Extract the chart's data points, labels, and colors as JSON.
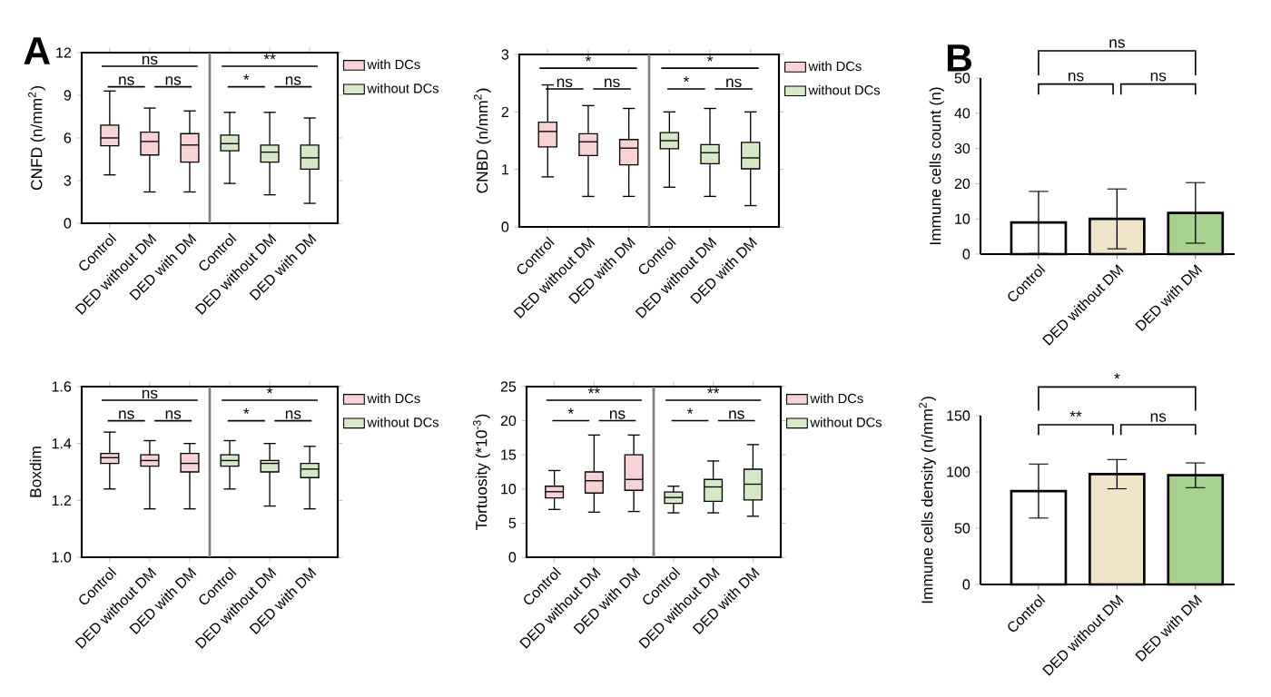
{
  "chart_data": [
    {
      "type": "box",
      "title": "A",
      "ylabel": "CNFD (n/mm$^{2}$)",
      "categories": [
        "Control",
        "DED without DM",
        "DED with DM",
        "Control",
        "DED without DM",
        "DED with DM"
      ],
      "ylim": [
        0,
        12
      ],
      "yticks": [
        0,
        3,
        6,
        9,
        12
      ],
      "legend": "right",
      "annotations": [
        "ns",
        "ns",
        "ns",
        "**",
        "*",
        "ns"
      ],
      "series": [
        {
          "name": "with DCs",
          "color": "#f8d3d6",
          "boxes": [
            {
              "low": 3.4,
              "q1": 5.45,
              "median": 6.0,
              "q3": 6.9,
              "high": 9.3
            },
            {
              "low": 2.2,
              "q1": 4.8,
              "median": 5.75,
              "q3": 6.4,
              "high": 8.1
            },
            {
              "low": 2.2,
              "q1": 4.3,
              "median": 5.5,
              "q3": 6.3,
              "high": 7.9
            },
            null,
            null,
            null
          ]
        },
        {
          "name": "without DCs",
          "color": "#d6e9c6",
          "boxes": [
            null,
            null,
            null,
            {
              "low": 2.8,
              "q1": 5.1,
              "median": 5.6,
              "q3": 6.2,
              "high": 7.8
            },
            {
              "low": 2.0,
              "q1": 4.3,
              "median": 5.0,
              "q3": 5.5,
              "high": 7.8
            },
            {
              "low": 1.4,
              "q1": 3.8,
              "median": 4.6,
              "q3": 5.5,
              "high": 7.4
            }
          ]
        }
      ]
    },
    {
      "type": "box",
      "ylabel": "CNBD (n/mm$^{2}$)",
      "categories": [
        "Control",
        "DED without DM",
        "DED with DM",
        "Control",
        "DED without DM",
        "DED with DM"
      ],
      "ylim": [
        0,
        3
      ],
      "yticks": [
        0,
        1,
        2,
        3
      ],
      "legend": "right",
      "annotations": [
        "*",
        "ns",
        "ns",
        "*",
        "*",
        "ns"
      ],
      "series": [
        {
          "name": "with DCs",
          "color": "#f8d3d6",
          "boxes": [
            {
              "low": 0.87,
              "q1": 1.39,
              "median": 1.66,
              "q3": 1.82,
              "high": 2.47
            },
            {
              "low": 0.53,
              "q1": 1.24,
              "median": 1.48,
              "q3": 1.62,
              "high": 2.11
            },
            {
              "low": 0.53,
              "q1": 1.08,
              "median": 1.37,
              "q3": 1.52,
              "high": 2.06
            },
            null,
            null,
            null
          ]
        },
        {
          "name": "without DCs",
          "color": "#d6e9c6",
          "boxes": [
            null,
            null,
            null,
            {
              "low": 0.69,
              "q1": 1.36,
              "median": 1.5,
              "q3": 1.64,
              "high": 2.0
            },
            {
              "low": 0.53,
              "q1": 1.1,
              "median": 1.29,
              "q3": 1.43,
              "high": 2.06
            },
            {
              "low": 0.37,
              "q1": 1.01,
              "median": 1.2,
              "q3": 1.47,
              "high": 2.0
            }
          ]
        }
      ]
    },
    {
      "type": "box",
      "ylabel": "Boxdim",
      "categories": [
        "Control",
        "DED without DM",
        "DED with DM",
        "Control",
        "DED without DM",
        "DED with DM"
      ],
      "ylim": [
        1.0,
        1.6
      ],
      "yticks": [
        {
          "value": 1.0,
          "label": "1.0"
        },
        1.2,
        1.4,
        1.6
      ],
      "legend": "right",
      "annotations": [
        "ns",
        "ns",
        "ns",
        "*",
        "*",
        "ns"
      ],
      "series": [
        {
          "name": "with DCs",
          "color": "#f8d3d6",
          "boxes": [
            {
              "low": 1.24,
              "q1": 1.33,
              "median": 1.35,
              "q3": 1.365,
              "high": 1.44
            },
            {
              "low": 1.17,
              "q1": 1.32,
              "median": 1.34,
              "q3": 1.36,
              "high": 1.41
            },
            {
              "low": 1.17,
              "q1": 1.3,
              "median": 1.33,
              "q3": 1.365,
              "high": 1.4
            },
            null,
            null,
            null
          ]
        },
        {
          "name": "without DCs",
          "color": "#d6e9c6",
          "boxes": [
            null,
            null,
            null,
            {
              "low": 1.24,
              "q1": 1.32,
              "median": 1.34,
              "q3": 1.36,
              "high": 1.41
            },
            {
              "low": 1.18,
              "q1": 1.3,
              "median": 1.33,
              "q3": 1.34,
              "high": 1.4
            },
            {
              "low": 1.17,
              "q1": 1.28,
              "median": 1.31,
              "q3": 1.33,
              "high": 1.39
            }
          ]
        }
      ]
    },
    {
      "type": "box",
      "ylabel": "Tortuosity (*10$^{-3}$)",
      "categories": [
        "Control",
        "DED without DM",
        "DED with DM",
        "Control",
        "DED without DM",
        "DED with DM"
      ],
      "ylim": [
        0,
        25
      ],
      "yticks": [
        0,
        5,
        10,
        15,
        20,
        25
      ],
      "legend": "right",
      "annotations": [
        "**",
        "*",
        "ns",
        "**",
        "*",
        "ns"
      ],
      "series": [
        {
          "name": "with DCs",
          "color": "#f8d3d6",
          "boxes": [
            {
              "low": 7.0,
              "q1": 8.7,
              "median": 9.6,
              "q3": 10.4,
              "high": 12.7
            },
            {
              "low": 6.6,
              "q1": 9.4,
              "median": 11.2,
              "q3": 12.5,
              "high": 17.9
            },
            {
              "low": 6.7,
              "q1": 9.8,
              "median": 11.4,
              "q3": 15.0,
              "high": 17.9
            },
            null,
            null,
            null
          ]
        },
        {
          "name": "without DCs",
          "color": "#d6e9c6",
          "boxes": [
            null,
            null,
            null,
            {
              "low": 6.5,
              "q1": 7.9,
              "median": 8.75,
              "q3": 9.55,
              "high": 10.4
            },
            {
              "low": 6.5,
              "q1": 8.2,
              "median": 10.3,
              "q3": 11.4,
              "high": 14.1
            },
            {
              "low": 6.0,
              "q1": 8.4,
              "median": 10.7,
              "q3": 12.9,
              "high": 16.5
            }
          ]
        }
      ]
    },
    {
      "type": "bar",
      "title": "B",
      "ylabel": "Immune cells count (n)",
      "categories": [
        "Control",
        "DED without DM",
        "DED with DM"
      ],
      "values": [
        9.0,
        10.0,
        11.7
      ],
      "errors": [
        8.8,
        8.5,
        8.6
      ],
      "colors": [
        "#ffffff",
        "#efe4c8",
        "#a9d18e"
      ],
      "ylim": [
        0,
        50
      ],
      "yticks": [
        0,
        10,
        20,
        30,
        40,
        50
      ],
      "annotations": [
        "ns",
        "ns",
        "ns"
      ]
    },
    {
      "type": "bar",
      "ylabel": "Immune cells density (n/mm$^{2}$)",
      "categories": [
        "Control",
        "DED without DM",
        "DED with DM"
      ],
      "values": [
        83,
        98,
        97
      ],
      "errors": [
        24,
        13,
        11
      ],
      "colors": [
        "#ffffff",
        "#efe4c8",
        "#a9d18e"
      ],
      "ylim": [
        0,
        150
      ],
      "yticks": [
        0,
        50,
        100,
        150
      ],
      "annotations": [
        "*",
        "**",
        "ns"
      ]
    }
  ]
}
